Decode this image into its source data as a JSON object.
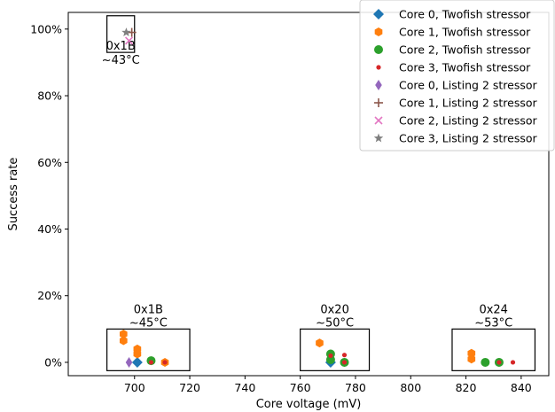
{
  "chart_data": {
    "type": "scatter",
    "xlabel": "Core voltage (mV)",
    "ylabel": "Success rate",
    "xlim": [
      676,
      850
    ],
    "ylim": [
      -0.04,
      1.05
    ],
    "xticks": [
      700,
      720,
      740,
      760,
      780,
      800,
      820,
      840
    ],
    "xtick_labels": [
      "700",
      "720",
      "740",
      "760",
      "780",
      "800",
      "820",
      "840"
    ],
    "yticks": [
      0,
      0.2,
      0.4,
      0.6,
      0.8,
      1.0
    ],
    "ytick_labels": [
      "0%",
      "20%",
      "40%",
      "60%",
      "80%",
      "100%"
    ],
    "grid": false,
    "legend_position": "top-right",
    "series": [
      {
        "name": "Core 0, Twofish stressor",
        "marker": "diamond",
        "color": "#1f77b4",
        "points": [
          [
            701,
            0.0
          ],
          [
            771,
            0.0
          ]
        ]
      },
      {
        "name": "Core 1, Twofish stressor",
        "marker": "hexagon",
        "color": "#ff7f0e",
        "points": [
          [
            696,
            0.085
          ],
          [
            696,
            0.065
          ],
          [
            701,
            0.04
          ],
          [
            701,
            0.025
          ],
          [
            706,
            0.005
          ],
          [
            711,
            0.0
          ],
          [
            767,
            0.058
          ],
          [
            771,
            0.025
          ],
          [
            776,
            0.0
          ],
          [
            822,
            0.027
          ],
          [
            822,
            0.01
          ],
          [
            832,
            0.0
          ]
        ]
      },
      {
        "name": "Core 2, Twofish stressor",
        "marker": "circle",
        "color": "#2ca02c",
        "points": [
          [
            706,
            0.005
          ],
          [
            771,
            0.025
          ],
          [
            771,
            0.008
          ],
          [
            776,
            0.0
          ],
          [
            827,
            0.0
          ],
          [
            832,
            0.0
          ]
        ]
      },
      {
        "name": "Core 3, Twofish stressor",
        "marker": "point",
        "color": "#d62728",
        "points": [
          [
            706,
            0.0
          ],
          [
            711,
            0.0
          ],
          [
            771,
            0.02
          ],
          [
            776,
            0.022
          ],
          [
            776,
            0.0
          ],
          [
            832,
            0.0
          ],
          [
            837,
            0.0
          ]
        ]
      },
      {
        "name": "Core 0, Listing 2 stressor",
        "marker": "thin-diamond",
        "color": "#9467bd",
        "points": [
          [
            698,
            0.0
          ]
        ]
      },
      {
        "name": "Core 1, Listing 2 stressor",
        "marker": "plus",
        "color": "#8c564b",
        "points": [
          [
            699,
            0.99
          ]
        ]
      },
      {
        "name": "Core 2, Listing 2 stressor",
        "marker": "x",
        "color": "#e377c2",
        "points": [
          [
            698,
            0.965
          ]
        ]
      },
      {
        "name": "Core 3, Listing 2 stressor",
        "marker": "star",
        "color": "#7f7f7f",
        "points": [
          [
            697,
            0.99
          ]
        ]
      }
    ],
    "annotations": [
      {
        "line1": "0x1B",
        "line2": "~43°C",
        "box_x": [
          690,
          700
        ],
        "box_y": [
          0.93,
          1.04
        ]
      },
      {
        "line1": "0x1B",
        "line2": "~45°C",
        "box_x": [
          690,
          720
        ],
        "box_y": [
          -0.025,
          0.1
        ]
      },
      {
        "line1": "0x20",
        "line2": "~50°C",
        "box_x": [
          760,
          785
        ],
        "box_y": [
          -0.025,
          0.1
        ]
      },
      {
        "line1": "0x24",
        "line2": "~53°C",
        "box_x": [
          815,
          845
        ],
        "box_y": [
          -0.025,
          0.1
        ]
      }
    ]
  }
}
